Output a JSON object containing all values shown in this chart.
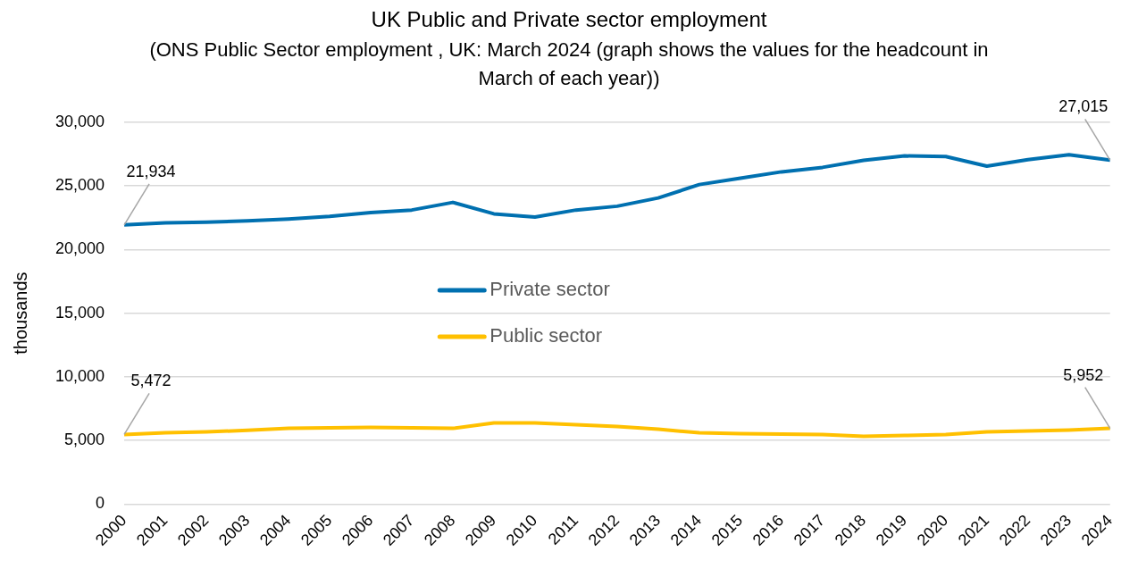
{
  "chart_data": {
    "type": "line",
    "title": "UK Public and Private sector employment",
    "subtitle": "(ONS Public Sector employment , UK: March 2024 (graph shows the values for the headcount in March of each year))",
    "ylabel": "thousands",
    "categories": [
      "2000",
      "2001",
      "2002",
      "2003",
      "2004",
      "2005",
      "2006",
      "2007",
      "2008",
      "2009",
      "2010",
      "2011",
      "2012",
      "2013",
      "2014",
      "2015",
      "2016",
      "2017",
      "2018",
      "2019",
      "2020",
      "2021",
      "2022",
      "2023",
      "2024"
    ],
    "series": [
      {
        "name": "Private sector",
        "color": "#0070b0",
        "values": [
          21934,
          22100,
          22150,
          22250,
          22400,
          22600,
          22900,
          23100,
          23700,
          22800,
          22550,
          23100,
          23400,
          24050,
          25100,
          25600,
          26100,
          26450,
          27000,
          27350,
          27300,
          26550,
          27050,
          27450,
          27015
        ]
      },
      {
        "name": "Public sector",
        "color": "#ffc000",
        "values": [
          5472,
          5600,
          5670,
          5800,
          5950,
          6000,
          6030,
          6000,
          5950,
          6380,
          6380,
          6240,
          6100,
          5890,
          5600,
          5530,
          5500,
          5460,
          5320,
          5390,
          5460,
          5670,
          5750,
          5820,
          5952
        ]
      }
    ],
    "ylim": [
      0,
      30000
    ],
    "yticks": [
      {
        "value": 0,
        "label": "0"
      },
      {
        "value": 5000,
        "label": "5,000"
      },
      {
        "value": 10000,
        "label": "10,000"
      },
      {
        "value": 15000,
        "label": "15,000"
      },
      {
        "value": 20000,
        "label": "20,000"
      },
      {
        "value": 25000,
        "label": "25,000"
      },
      {
        "value": 30000,
        "label": "30,000"
      }
    ],
    "grid": "y",
    "legend": "center left",
    "marker": "none",
    "line_style": "solid",
    "annotations": [
      {
        "text": "21,934",
        "x": "2000",
        "y": 21934
      },
      {
        "text": "27,015",
        "x": "2024",
        "y": 27015
      },
      {
        "text": "5,472",
        "x": "2000",
        "y": 5472
      },
      {
        "text": "5,952",
        "x": "2024",
        "y": 5952
      }
    ]
  }
}
